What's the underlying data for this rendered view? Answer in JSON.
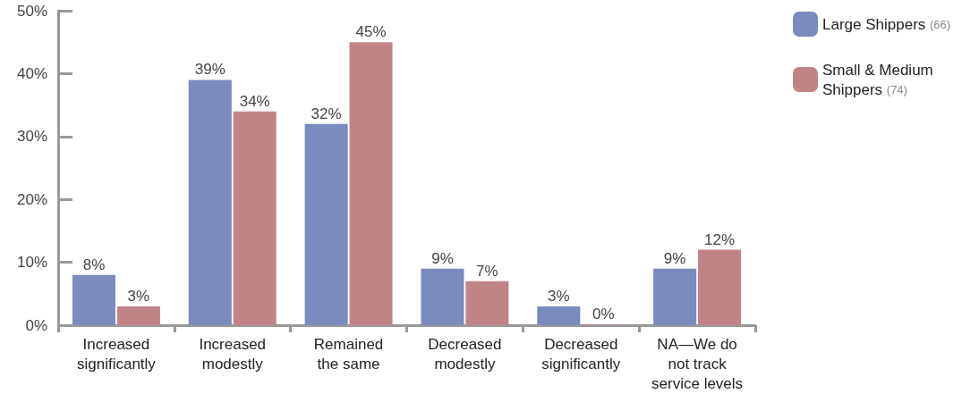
{
  "chart_data": {
    "type": "bar",
    "categories": [
      "Increased\nsignificantly",
      "Increased\nmodestly",
      "Remained\nthe same",
      "Decreased\nmodestly",
      "Decreased\nsignificantly",
      "NA—We do\nnot track\nservice levels"
    ],
    "series": [
      {
        "name": "Large Shippers (66)",
        "color": "#7a8bbd",
        "values": [
          8,
          39,
          32,
          9,
          3,
          9
        ],
        "value_labels": [
          "8%",
          "39%",
          "32%",
          "9%",
          "3%",
          "9%"
        ]
      },
      {
        "name": "Small & Medium Shippers (74)",
        "color": "#c08487",
        "values": [
          3,
          34,
          45,
          7,
          0,
          12
        ],
        "value_labels": [
          "3%",
          "34%",
          "45%",
          "7%",
          "0%",
          "12%"
        ]
      }
    ],
    "ylim": [
      0,
      50
    ],
    "yticks": [
      {
        "value": 0,
        "label": "0%"
      },
      {
        "value": 10,
        "label": "10%"
      },
      {
        "value": 20,
        "label": "20%"
      },
      {
        "value": 30,
        "label": "30%"
      },
      {
        "value": 40,
        "label": "40%"
      },
      {
        "value": 50,
        "label": "50%"
      }
    ],
    "grid": false,
    "legend": "top right"
  }
}
